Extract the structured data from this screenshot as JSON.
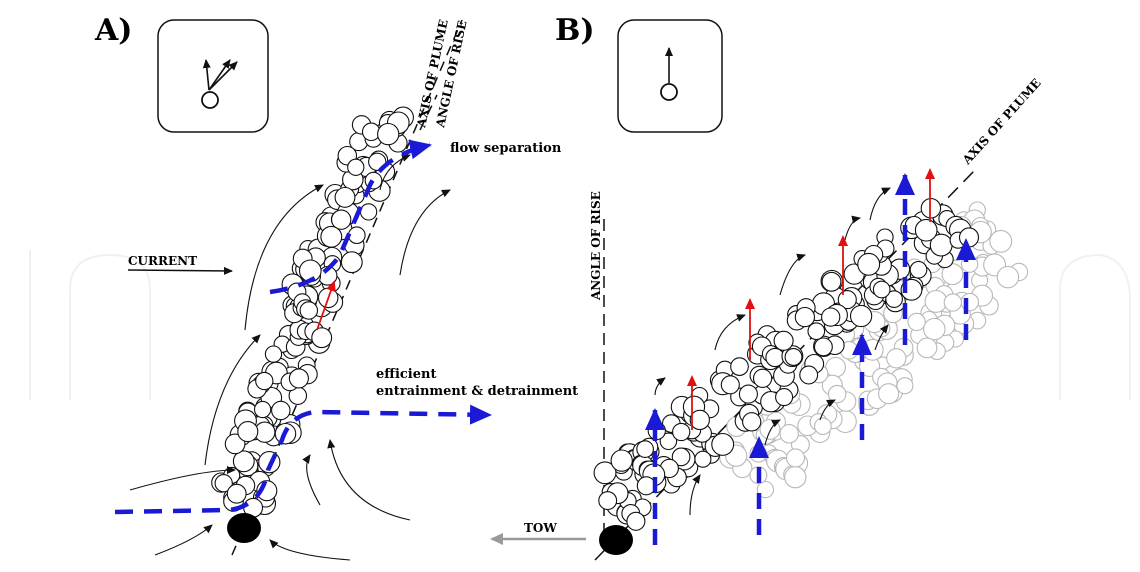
{
  "panel_a": {
    "letter": "A)",
    "axis_of_plume": "AXIS OF PLUME",
    "angle_of_rise": "ANGLE OF RISE",
    "flow_separation": "flow separation",
    "current": "CURRENT",
    "efficient_line1": "efficient",
    "efficient_line2": "entrainment & detrainment"
  },
  "panel_b": {
    "letter": "B)",
    "axis_of_plume": "AXIS OF PLUME",
    "angle_of_rise": "ANGLE OF RISE",
    "tow": "TOW"
  },
  "colors": {
    "flow_blue": "#1a1ad6",
    "rise_red": "#e01010",
    "tow_gray": "#9a9a9a",
    "ghost_bubble": "#b8b8b8",
    "ink": "#111111"
  },
  "icons": [
    "plume-inset-icon",
    "bubble-source-icon",
    "arrow-icon"
  ]
}
